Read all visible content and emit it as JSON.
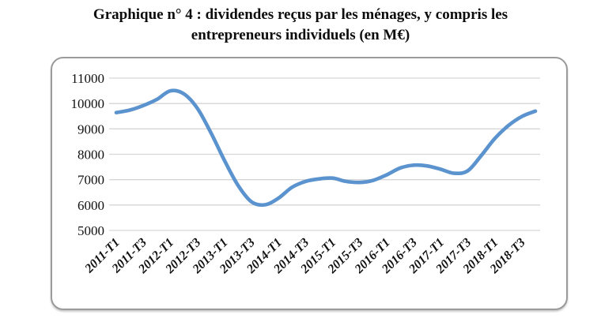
{
  "header": {
    "line1": "Graphique n° 4 : dividendes reçus par les ménages, y compris les",
    "line2": "entrepreneurs individuels (en M€)"
  },
  "chart_data": {
    "type": "line",
    "title": "Graphique n° 4 : dividendes reçus par les ménages, y compris les entrepreneurs individuels (en M€)",
    "unit": "M€",
    "categories": [
      "2011-T1",
      "2011-T2",
      "2011-T3",
      "2011-T4",
      "2012-T1",
      "2012-T2",
      "2012-T3",
      "2012-T4",
      "2013-T1",
      "2013-T2",
      "2013-T3",
      "2013-T4",
      "2014-T1",
      "2014-T2",
      "2014-T3",
      "2014-T4",
      "2015-T1",
      "2015-T2",
      "2015-T3",
      "2015-T4",
      "2016-T1",
      "2016-T2",
      "2016-T3",
      "2016-T4",
      "2017-T1",
      "2017-T2",
      "2017-T3",
      "2017-T4",
      "2018-T1",
      "2018-T2",
      "2018-T3",
      "2018-T4"
    ],
    "values": [
      9640,
      9740,
      9920,
      10160,
      10500,
      10380,
      9810,
      8850,
      7760,
      6780,
      6130,
      6010,
      6270,
      6700,
      6930,
      7030,
      7060,
      6930,
      6890,
      6970,
      7190,
      7460,
      7570,
      7540,
      7410,
      7250,
      7350,
      7950,
      8620,
      9130,
      9490,
      9700
    ],
    "x_tick_labels": [
      "2011-T1",
      "2011-T3",
      "2012-T1",
      "2012-T3",
      "2013-T1",
      "2013-T3",
      "2014-T1",
      "2014-T3",
      "2015-T1",
      "2015-T3",
      "2016-T1",
      "2016-T3",
      "2017-T1",
      "2017-T3",
      "2018-T1",
      "2018-T3"
    ],
    "x_tick_every": 2,
    "y_ticks": [
      5000,
      6000,
      7000,
      8000,
      9000,
      10000,
      11000
    ],
    "ylim": [
      5000,
      11000
    ],
    "xlabel": "",
    "ylabel": "",
    "legend": "none",
    "grid": "horizontal",
    "smoothed": true,
    "line_color": "#5b93ce",
    "gridline_color": "#d6d6d6",
    "text_color": "#111111",
    "frame_border_color": "#9b9b9b"
  }
}
